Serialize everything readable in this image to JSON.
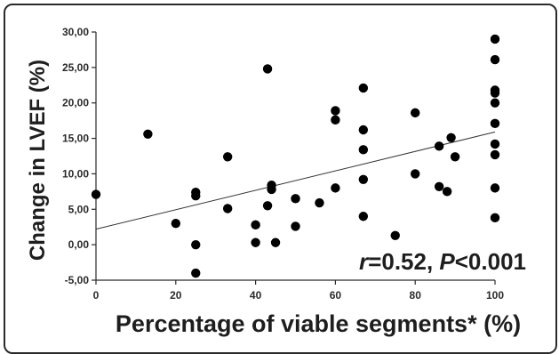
{
  "chart_data": {
    "type": "scatter",
    "title": "",
    "xlabel": "Percentage of viable segments* (%)",
    "ylabel": "Change in LVEF (%)",
    "xlim": [
      0,
      100
    ],
    "ylim": [
      -5,
      30
    ],
    "x_ticks": [
      "0",
      "20",
      "40",
      "60",
      "80",
      "100"
    ],
    "y_ticks": [
      "-5,00",
      "0,00",
      "5,00",
      "10,00",
      "15,00",
      "20,00",
      "25,00",
      "30,00"
    ],
    "grid": false,
    "annotation": {
      "r_label": "r",
      "r_value": "=0.52, ",
      "p_label": "P",
      "p_value": "<0.001"
    },
    "trendline": {
      "x": [
        0,
        100
      ],
      "y": [
        2.2,
        15.9
      ]
    },
    "points": [
      {
        "x": 0,
        "y": 7.1
      },
      {
        "x": 13,
        "y": 15.6
      },
      {
        "x": 20,
        "y": 3.0
      },
      {
        "x": 25,
        "y": 7.4
      },
      {
        "x": 25,
        "y": 6.9
      },
      {
        "x": 25,
        "y": 0.0
      },
      {
        "x": 25,
        "y": -4.0
      },
      {
        "x": 33,
        "y": 12.4
      },
      {
        "x": 33,
        "y": 5.1
      },
      {
        "x": 40,
        "y": 2.8
      },
      {
        "x": 40,
        "y": 0.3
      },
      {
        "x": 43,
        "y": 24.8
      },
      {
        "x": 43,
        "y": 5.5
      },
      {
        "x": 44,
        "y": 8.4
      },
      {
        "x": 44,
        "y": 7.8
      },
      {
        "x": 45,
        "y": 0.3
      },
      {
        "x": 50,
        "y": 6.5
      },
      {
        "x": 50,
        "y": 2.6
      },
      {
        "x": 56,
        "y": 5.9
      },
      {
        "x": 60,
        "y": 18.9
      },
      {
        "x": 60,
        "y": 17.6
      },
      {
        "x": 60,
        "y": 8.0
      },
      {
        "x": 67,
        "y": 22.1
      },
      {
        "x": 67,
        "y": 16.2
      },
      {
        "x": 67,
        "y": 13.4
      },
      {
        "x": 67,
        "y": 9.2
      },
      {
        "x": 67,
        "y": 4.0
      },
      {
        "x": 75,
        "y": 1.3
      },
      {
        "x": 80,
        "y": 18.6
      },
      {
        "x": 80,
        "y": 10.0
      },
      {
        "x": 86,
        "y": 13.9
      },
      {
        "x": 86,
        "y": 8.2
      },
      {
        "x": 88,
        "y": 7.5
      },
      {
        "x": 89,
        "y": 15.1
      },
      {
        "x": 90,
        "y": 12.4
      },
      {
        "x": 100,
        "y": 29.0
      },
      {
        "x": 100,
        "y": 26.1
      },
      {
        "x": 100,
        "y": 21.8
      },
      {
        "x": 100,
        "y": 21.4
      },
      {
        "x": 100,
        "y": 20.0
      },
      {
        "x": 100,
        "y": 17.1
      },
      {
        "x": 100,
        "y": 14.2
      },
      {
        "x": 100,
        "y": 12.7
      },
      {
        "x": 100,
        "y": 8.0
      },
      {
        "x": 100,
        "y": 3.8
      }
    ]
  }
}
